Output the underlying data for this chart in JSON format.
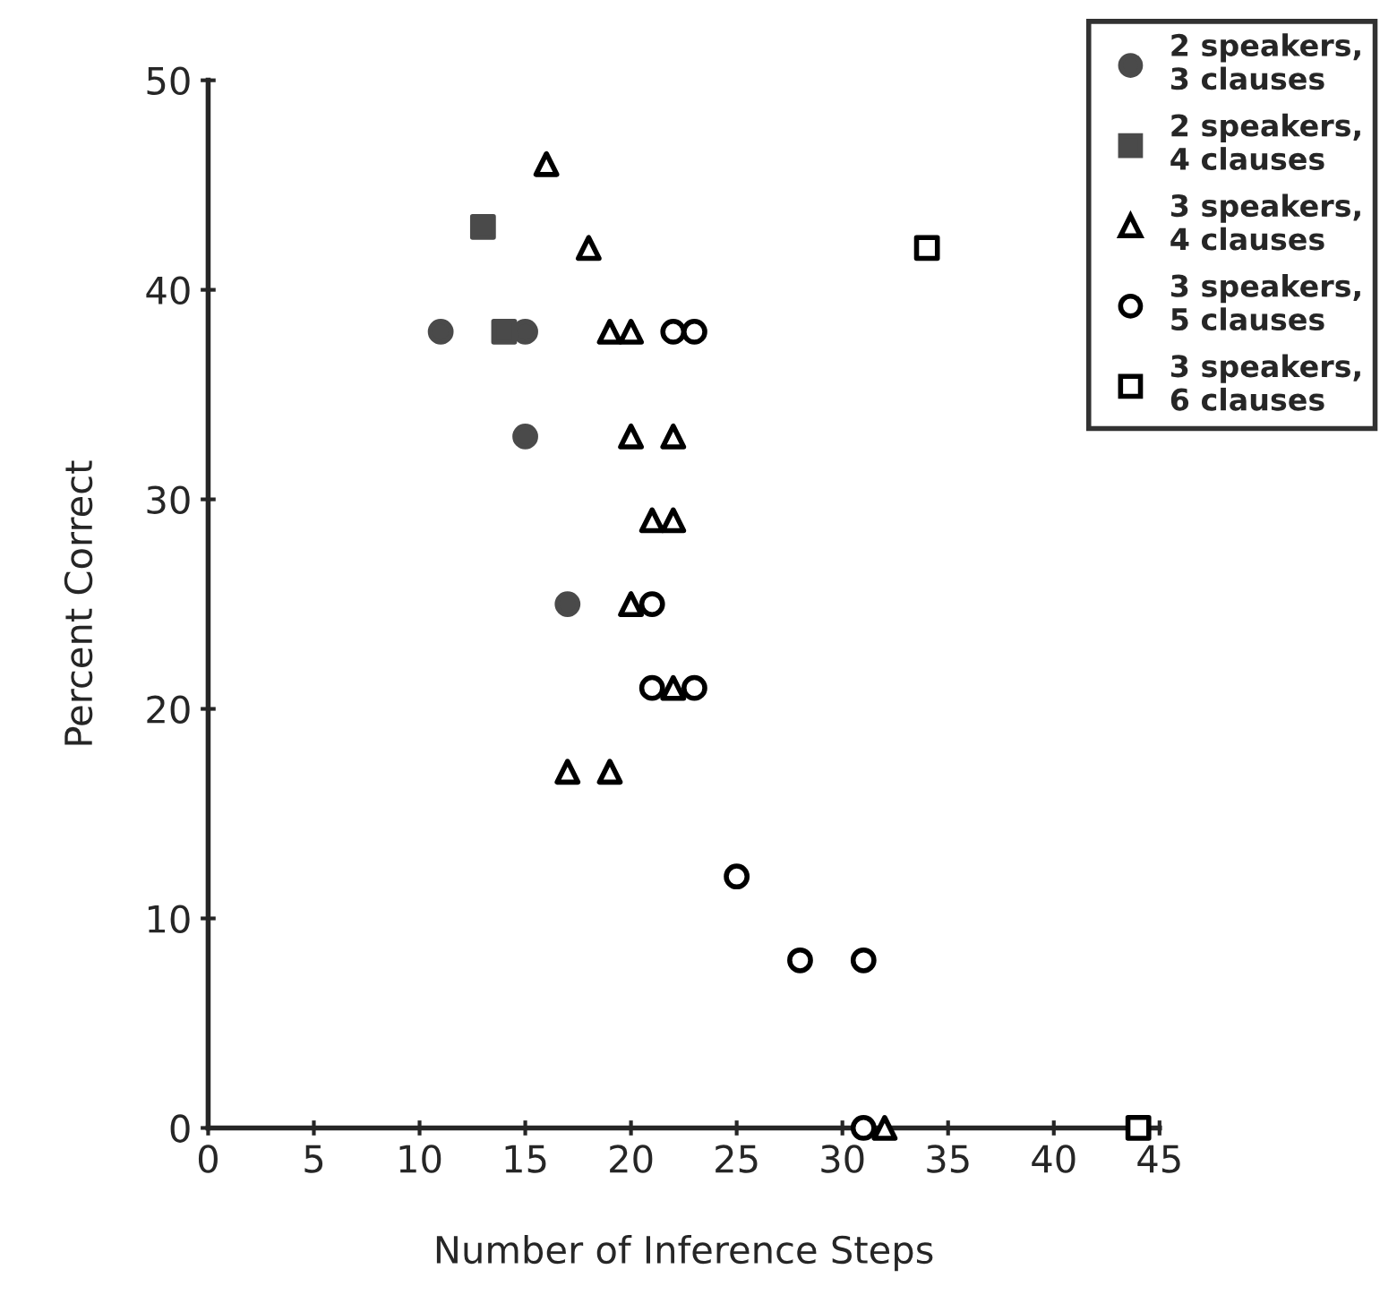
{
  "chart_data": {
    "type": "scatter",
    "xlabel": "Number of Inference Steps",
    "ylabel": "Percent Correct",
    "xlim": [
      0,
      45
    ],
    "ylim": [
      0,
      50
    ],
    "xticks": [
      0,
      5,
      10,
      15,
      20,
      25,
      30,
      35,
      40,
      45
    ],
    "yticks": [
      0,
      10,
      20,
      30,
      40,
      50
    ],
    "grid": false,
    "legend": "top right",
    "series": [
      {
        "name": "2 speakers,\n3 clauses",
        "color": "#4a4a4a",
        "marker": "circle",
        "x": [
          11,
          15,
          15,
          17
        ],
        "values": [
          38,
          38,
          33,
          25
        ]
      },
      {
        "name": "2 speakers,\n4 clauses",
        "color": "#4a4a4a",
        "marker": "square",
        "x": [
          13,
          14
        ],
        "values": [
          43,
          38
        ]
      },
      {
        "name": "3 speakers,\n4 clauses",
        "color": "#000000",
        "marker": "triangle",
        "x": [
          16,
          18,
          19,
          20,
          20,
          22,
          21,
          22,
          20,
          22,
          17,
          19,
          32
        ],
        "values": [
          46,
          42,
          38,
          38,
          33,
          33,
          29,
          29,
          25,
          21,
          17,
          17,
          0
        ]
      },
      {
        "name": "3 speakers,\n5 clauses",
        "color": "#000000",
        "marker": "circle",
        "x": [
          22,
          23,
          21,
          21,
          23,
          25,
          28,
          31,
          31
        ],
        "values": [
          38,
          38,
          25,
          21,
          21,
          12,
          8,
          8,
          0
        ]
      },
      {
        "name": "3 speakers,\n6 clauses",
        "color": "#000000",
        "marker": "square",
        "x": [
          34,
          44
        ],
        "values": [
          42,
          0
        ]
      }
    ]
  }
}
